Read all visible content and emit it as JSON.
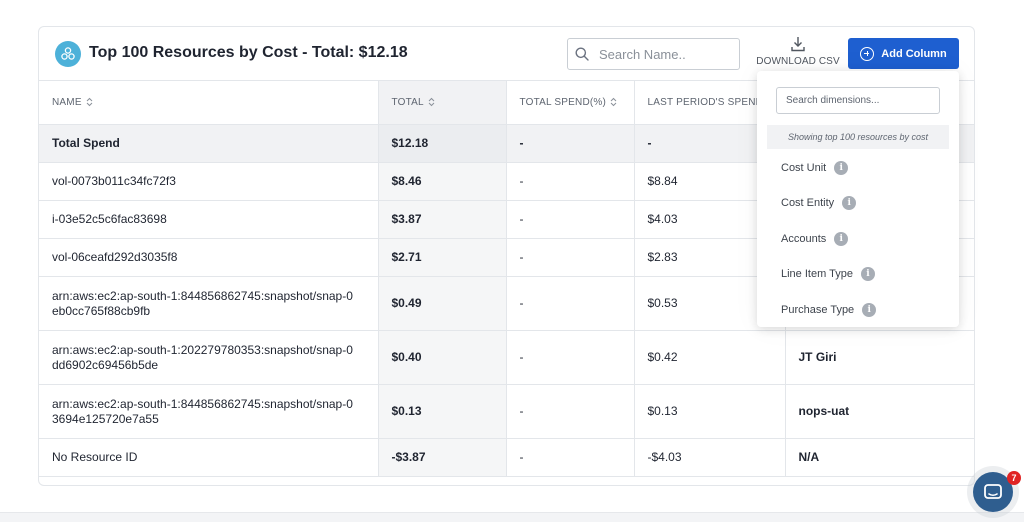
{
  "header": {
    "title": "Top 100 Resources by Cost - Total: $12.18",
    "search_placeholder": "Search Name..",
    "download_label": "DOWNLOAD CSV",
    "add_column_label": "Add Column"
  },
  "table": {
    "columns": [
      "NAME",
      "TOTAL",
      "TOTAL SPEND(%)",
      "LAST PERIOD'S SPEND",
      ""
    ],
    "total_row": {
      "name": "Total Spend",
      "total": "$12.18",
      "pct": "-",
      "last": "-",
      "extra": ""
    },
    "rows": [
      {
        "name": "vol-0073b011c34fc72f3",
        "total": "$8.46",
        "pct": "-",
        "last": "$8.84",
        "extra": ""
      },
      {
        "name": "i-03e52c5c6fac83698",
        "total": "$3.87",
        "pct": "-",
        "last": "$4.03",
        "extra": ""
      },
      {
        "name": "vol-06ceafd292d3035f8",
        "total": "$2.71",
        "pct": "-",
        "last": "$2.83",
        "extra": ""
      },
      {
        "name": "arn:aws:ec2:ap-south-1:844856862745:snapshot/snap-0eb0cc765f88cb9fb",
        "total": "$0.49",
        "pct": "-",
        "last": "$0.53",
        "extra": ""
      },
      {
        "name": "arn:aws:ec2:ap-south-1:202279780353:snapshot/snap-0dd6902c69456b5de",
        "total": "$0.40",
        "pct": "-",
        "last": "$0.42",
        "extra": "JT Giri"
      },
      {
        "name": "arn:aws:ec2:ap-south-1:844856862745:snapshot/snap-03694e125720e7a55",
        "total": "$0.13",
        "pct": "-",
        "last": "$0.13",
        "extra": "nops-uat"
      },
      {
        "name": "No Resource ID",
        "total": "-$3.87",
        "pct": "-",
        "last": "-$4.03",
        "extra": "N/A"
      }
    ]
  },
  "dropdown": {
    "search_placeholder": "Search dimensions...",
    "note": "Showing top 100 resources by cost",
    "items": [
      "Cost Unit",
      "Cost Entity",
      "Accounts",
      "Line Item Type",
      "Purchase Type"
    ]
  },
  "chat": {
    "badge": "7"
  },
  "colors": {
    "accent": "#1e5fd0",
    "logo": "#4db1d9",
    "chat": "#2f5e8f",
    "badge": "#e02424"
  }
}
